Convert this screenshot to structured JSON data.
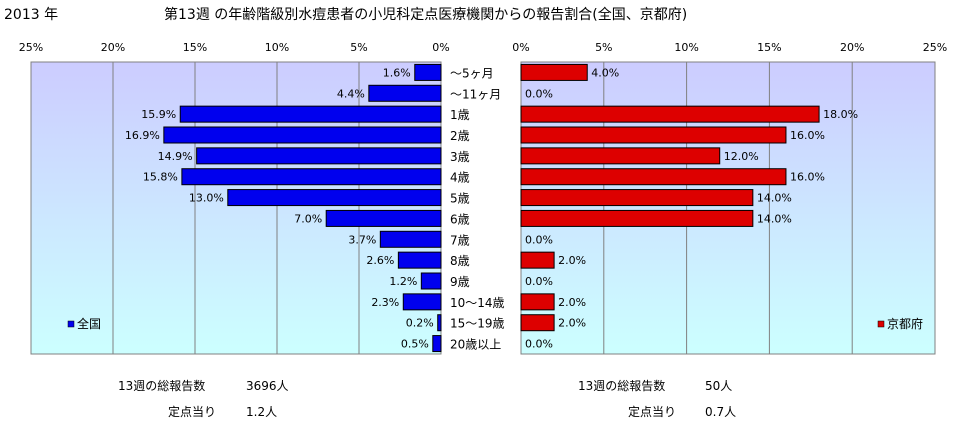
{
  "header": {
    "year": "2013 年",
    "title": "第13週 の年齢階級別水痘患者の小児科定点医療機関からの報告割合(全国、京都府)"
  },
  "footer": {
    "left_count_label": "13週の総報告数",
    "left_count_value": "3696人",
    "left_rate_label": "定点当り",
    "left_rate_value": "1.2人",
    "right_count_label": "13週の総報告数",
    "right_count_value": "50人",
    "right_rate_label": "定点当り",
    "right_rate_value": "0.7人"
  },
  "chart_data": {
    "type": "bar",
    "orientation": "horizontal",
    "categories": [
      "～5ヶ月",
      "～11ヶ月",
      "1歳",
      "2歳",
      "3歳",
      "4歳",
      "5歳",
      "6歳",
      "7歳",
      "8歳",
      "9歳",
      "10～14歳",
      "15～19歳",
      "20歳以上"
    ],
    "value_unit": "%",
    "xlim": [
      0,
      25
    ],
    "xticks": [
      "0%",
      "5%",
      "10%",
      "15%",
      "20%",
      "25%"
    ],
    "grid": true,
    "colors": {
      "national": "#0000ee",
      "kyoto": "#dd0000",
      "plot_bg_top": "#ccccff",
      "plot_bg_bottom": "#ccffff"
    },
    "series": [
      {
        "name": "全国",
        "direction": "left",
        "legend_position": "bottom-left",
        "values": [
          1.6,
          4.4,
          15.9,
          16.9,
          14.9,
          15.8,
          13.0,
          7.0,
          3.7,
          2.6,
          1.2,
          2.3,
          0.2,
          0.5
        ],
        "labels": [
          "1.6%",
          "4.4%",
          "15.9%",
          "16.9%",
          "14.9%",
          "15.8%",
          "13.0%",
          "7.0%",
          "3.7%",
          "2.6%",
          "1.2%",
          "2.3%",
          "0.2%",
          "0.5%"
        ]
      },
      {
        "name": "京都府",
        "direction": "right",
        "legend_position": "bottom-right",
        "values": [
          4.0,
          0.0,
          18.0,
          16.0,
          12.0,
          16.0,
          14.0,
          14.0,
          0.0,
          2.0,
          0.0,
          2.0,
          2.0,
          0.0
        ],
        "labels": [
          "4.0%",
          "0.0%",
          "18.0%",
          "16.0%",
          "12.0%",
          "16.0%",
          "14.0%",
          "14.0%",
          "0.0%",
          "2.0%",
          "0.0%",
          "2.0%",
          "2.0%",
          "0.0%"
        ]
      }
    ]
  }
}
